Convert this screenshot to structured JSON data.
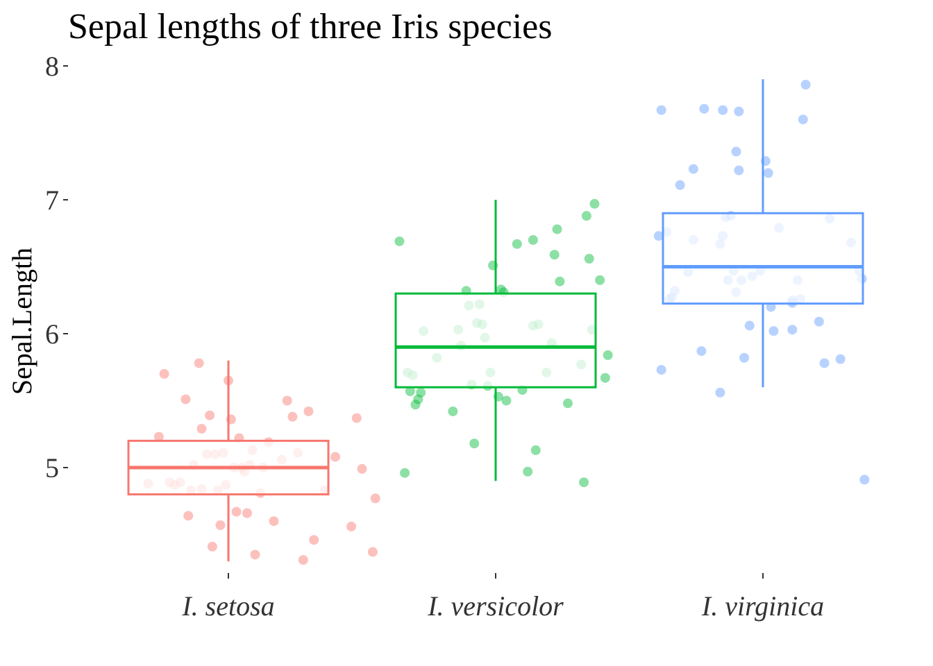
{
  "chart_data": {
    "type": "boxplot",
    "title": "Sepal lengths of three Iris species",
    "xlabel": "",
    "ylabel": "Sepal.Length",
    "ylim": [
      4.1,
      8.1
    ],
    "yticks": [
      5,
      6,
      7,
      8
    ],
    "grid": false,
    "legend": "none",
    "categories": [
      "I. setosa",
      "I. versicolor",
      "I. virginica"
    ],
    "colors": [
      "#F8766D",
      "#00BA38",
      "#619CFF"
    ],
    "series": [
      {
        "name": "I. setosa",
        "box": {
          "min": 4.3,
          "q1": 4.8,
          "median": 5.0,
          "q3": 5.2,
          "max": 5.8
        },
        "outliers": [],
        "points": [
          [
            -0.3,
            4.88
          ],
          [
            -0.26,
            5.23
          ],
          [
            -0.24,
            5.7
          ],
          [
            -0.22,
            4.89
          ],
          [
            -0.2,
            4.87
          ],
          [
            -0.18,
            4.89
          ],
          [
            -0.16,
            5.51
          ],
          [
            -0.15,
            4.64
          ],
          [
            -0.14,
            4.83
          ],
          [
            -0.13,
            5.02
          ],
          [
            -0.11,
            5.78
          ],
          [
            -0.1,
            5.29
          ],
          [
            -0.1,
            4.84
          ],
          [
            -0.08,
            5.1
          ],
          [
            -0.07,
            5.39
          ],
          [
            -0.06,
            4.41
          ],
          [
            -0.05,
            5.1
          ],
          [
            -0.04,
            4.83
          ],
          [
            -0.03,
            4.57
          ],
          [
            -0.02,
            5.11
          ],
          [
            -0.01,
            4.87
          ],
          [
            0.0,
            5.65
          ],
          [
            0.01,
            5.36
          ],
          [
            0.02,
            5.0
          ],
          [
            0.03,
            4.67
          ],
          [
            0.04,
            5.22
          ],
          [
            0.05,
            5.0
          ],
          [
            0.06,
            4.97
          ],
          [
            0.07,
            4.66
          ],
          [
            0.08,
            5.02
          ],
          [
            0.09,
            5.13
          ],
          [
            0.1,
            4.35
          ],
          [
            0.12,
            4.81
          ],
          [
            0.13,
            5.0
          ],
          [
            0.15,
            5.19
          ],
          [
            0.17,
            4.6
          ],
          [
            0.2,
            5.06
          ],
          [
            0.22,
            5.5
          ],
          [
            0.24,
            5.38
          ],
          [
            0.26,
            5.11
          ],
          [
            0.28,
            4.31
          ],
          [
            0.3,
            5.42
          ],
          [
            0.32,
            4.46
          ],
          [
            0.36,
            4.83
          ],
          [
            0.4,
            5.08
          ],
          [
            0.46,
            4.56
          ],
          [
            0.48,
            5.37
          ],
          [
            0.5,
            4.99
          ],
          [
            0.54,
            4.37
          ],
          [
            0.55,
            4.77
          ]
        ]
      },
      {
        "name": "I. versicolor",
        "box": {
          "min": 4.9,
          "q1": 5.6,
          "median": 5.9,
          "q3": 6.3,
          "max": 7.0
        },
        "outliers": [],
        "points": [
          [
            -0.36,
            6.69
          ],
          [
            -0.34,
            4.96
          ],
          [
            -0.33,
            5.71
          ],
          [
            -0.32,
            5.57
          ],
          [
            -0.31,
            5.69
          ],
          [
            -0.3,
            5.47
          ],
          [
            -0.29,
            5.51
          ],
          [
            -0.28,
            5.56
          ],
          [
            -0.27,
            6.02
          ],
          [
            -0.22,
            5.82
          ],
          [
            -0.16,
            5.42
          ],
          [
            -0.14,
            6.03
          ],
          [
            -0.13,
            5.91
          ],
          [
            -0.11,
            6.32
          ],
          [
            -0.1,
            6.21
          ],
          [
            -0.09,
            5.62
          ],
          [
            -0.08,
            5.18
          ],
          [
            -0.07,
            6.08
          ],
          [
            -0.06,
            6.22
          ],
          [
            -0.05,
            6.07
          ],
          [
            -0.04,
            5.97
          ],
          [
            -0.03,
            5.61
          ],
          [
            -0.02,
            5.71
          ],
          [
            -0.01,
            6.51
          ],
          [
            0.01,
            5.53
          ],
          [
            0.02,
            6.33
          ],
          [
            0.03,
            6.31
          ],
          [
            0.04,
            5.5
          ],
          [
            0.08,
            6.67
          ],
          [
            0.1,
            5.58
          ],
          [
            0.12,
            4.97
          ],
          [
            0.14,
            6.7
          ],
          [
            0.14,
            6.06
          ],
          [
            0.15,
            5.13
          ],
          [
            0.16,
            6.07
          ],
          [
            0.19,
            5.71
          ],
          [
            0.21,
            5.93
          ],
          [
            0.22,
            6.59
          ],
          [
            0.23,
            6.78
          ],
          [
            0.24,
            6.39
          ],
          [
            0.27,
            5.48
          ],
          [
            0.32,
            5.77
          ],
          [
            0.33,
            4.89
          ],
          [
            0.34,
            6.88
          ],
          [
            0.35,
            6.56
          ],
          [
            0.36,
            6.03
          ],
          [
            0.37,
            6.97
          ],
          [
            0.39,
            6.4
          ],
          [
            0.41,
            5.67
          ],
          [
            0.42,
            5.84
          ]
        ]
      },
      {
        "name": "I. virginica",
        "box": {
          "min": 5.6,
          "q1": 6.225,
          "median": 6.5,
          "q3": 6.9,
          "max": 7.9
        },
        "outliers": [
          4.9
        ],
        "points": [
          [
            -0.39,
            6.73
          ],
          [
            -0.38,
            7.67
          ],
          [
            -0.38,
            5.73
          ],
          [
            -0.36,
            6.76
          ],
          [
            -0.35,
            6.26
          ],
          [
            -0.34,
            6.27
          ],
          [
            -0.33,
            6.32
          ],
          [
            -0.31,
            7.11
          ],
          [
            -0.28,
            6.46
          ],
          [
            -0.26,
            6.7
          ],
          [
            -0.26,
            7.23
          ],
          [
            -0.23,
            5.87
          ],
          [
            -0.22,
            7.68
          ],
          [
            -0.16,
            6.67
          ],
          [
            -0.16,
            5.56
          ],
          [
            -0.15,
            7.67
          ],
          [
            -0.15,
            6.73
          ],
          [
            -0.14,
            6.87
          ],
          [
            -0.13,
            6.4
          ],
          [
            -0.12,
            6.88
          ],
          [
            -0.11,
            6.47
          ],
          [
            -0.1,
            7.36
          ],
          [
            -0.1,
            6.31
          ],
          [
            -0.09,
            7.22
          ],
          [
            -0.09,
            7.66
          ],
          [
            -0.08,
            6.4
          ],
          [
            -0.07,
            5.82
          ],
          [
            -0.05,
            6.06
          ],
          [
            -0.04,
            6.43
          ],
          [
            -0.01,
            6.47
          ],
          [
            0.01,
            7.29
          ],
          [
            0.02,
            7.2
          ],
          [
            0.03,
            6.2
          ],
          [
            0.04,
            6.02
          ],
          [
            0.06,
            6.79
          ],
          [
            0.11,
            6.03
          ],
          [
            0.11,
            6.23
          ],
          [
            0.11,
            6.25
          ],
          [
            0.13,
            6.4
          ],
          [
            0.14,
            6.26
          ],
          [
            0.15,
            7.6
          ],
          [
            0.16,
            7.86
          ],
          [
            0.21,
            6.09
          ],
          [
            0.23,
            5.78
          ],
          [
            0.25,
            6.86
          ],
          [
            0.29,
            5.81
          ],
          [
            0.33,
            6.68
          ],
          [
            0.36,
            6.47
          ],
          [
            0.37,
            6.41
          ],
          [
            0.38,
            4.91
          ]
        ]
      }
    ]
  }
}
